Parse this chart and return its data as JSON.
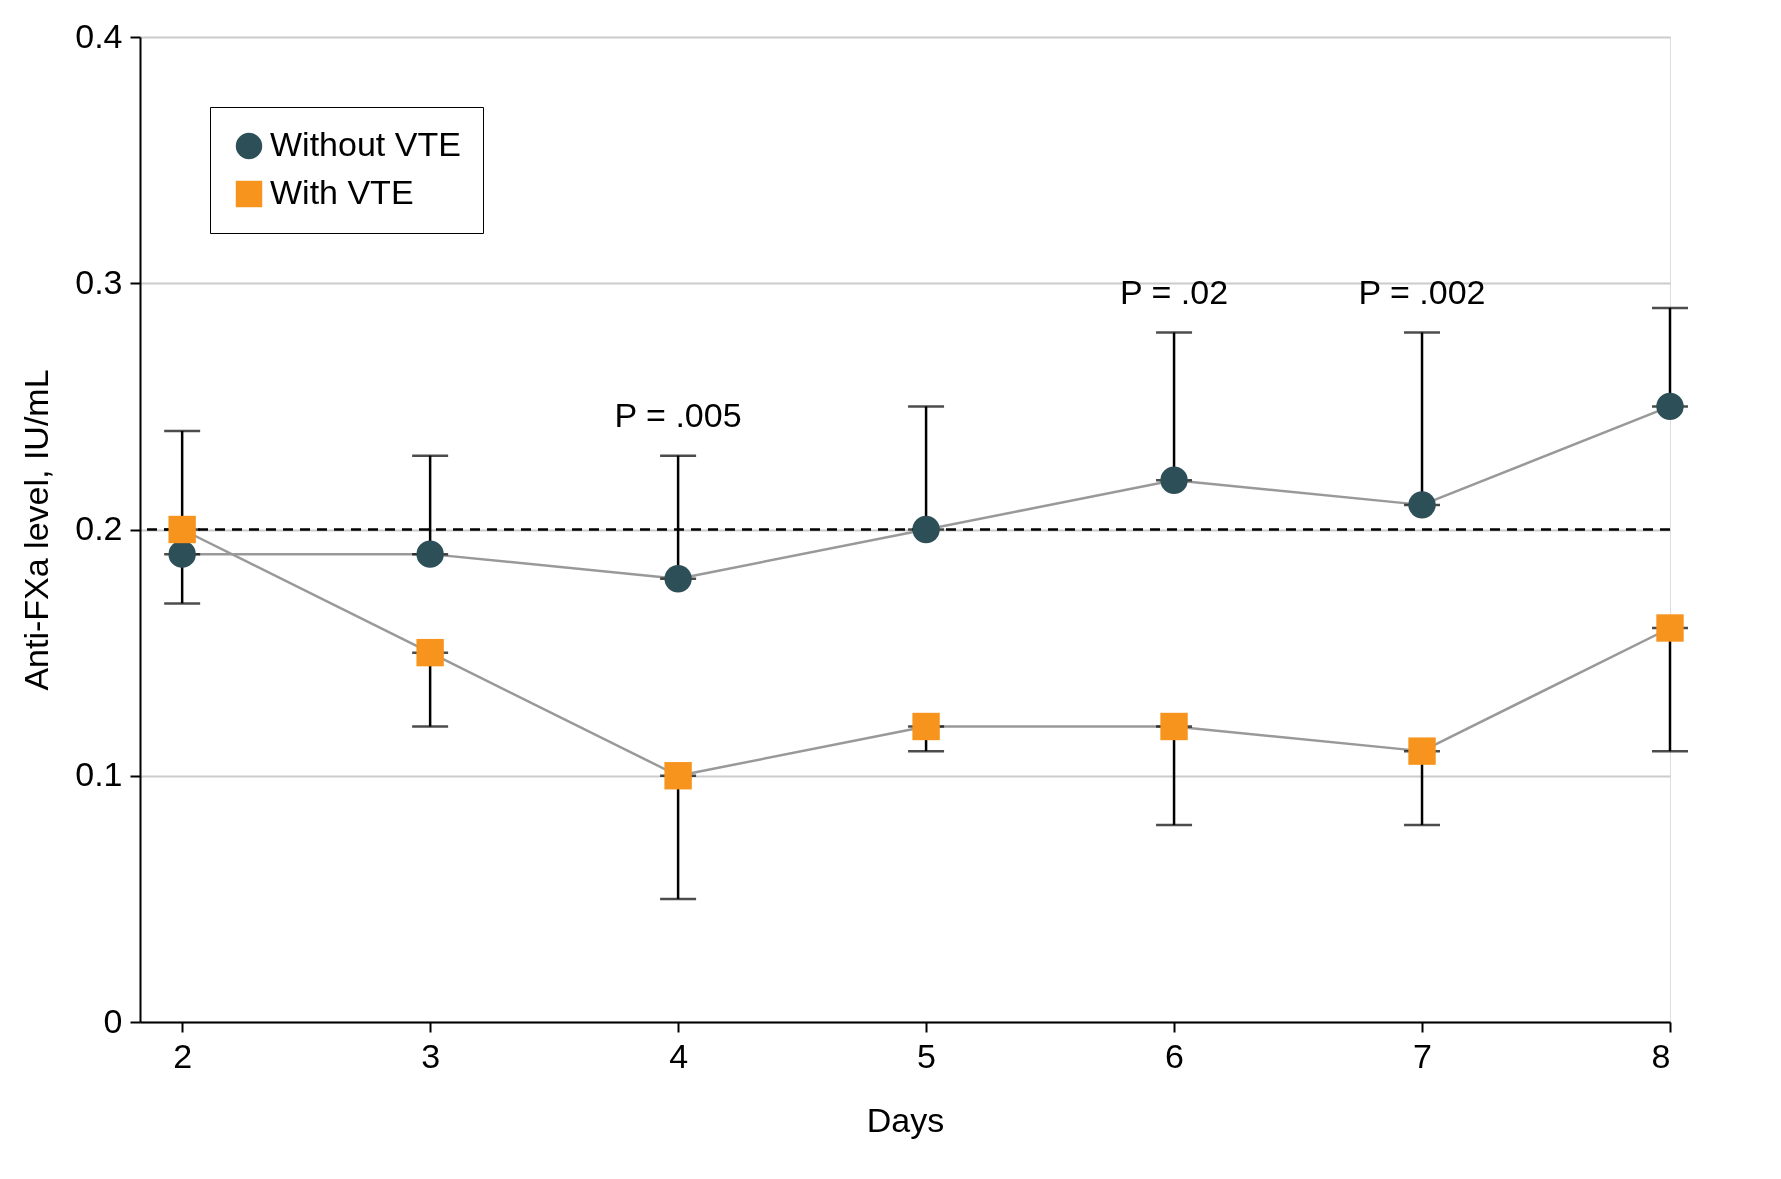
{
  "chart_data": {
    "type": "line",
    "xlabel": "Days",
    "ylabel": "Anti-FXa level, IU/mL",
    "x": [
      2,
      3,
      4,
      5,
      6,
      7,
      8
    ],
    "series": [
      {
        "name": "Without VTE",
        "color": "#2d4f57",
        "marker": "circle",
        "values": [
          0.19,
          0.19,
          0.18,
          0.2,
          0.22,
          0.21,
          0.25
        ],
        "errors": [
          [
            0.19,
            0.24
          ],
          [
            0.19,
            0.23
          ],
          [
            0.18,
            0.23
          ],
          [
            0.2,
            0.25
          ],
          [
            0.22,
            0.28
          ],
          [
            0.21,
            0.28
          ],
          [
            0.25,
            0.29
          ]
        ]
      },
      {
        "name": "With VTE",
        "color": "#f7941d",
        "marker": "square",
        "values": [
          0.2,
          0.15,
          0.1,
          0.12,
          0.12,
          0.11,
          0.16
        ],
        "errors": [
          [
            0.17,
            0.2
          ],
          [
            0.12,
            0.15
          ],
          [
            0.05,
            0.1
          ],
          [
            0.11,
            0.12
          ],
          [
            0.08,
            0.12
          ],
          [
            0.08,
            0.11
          ],
          [
            0.11,
            0.16
          ]
        ]
      }
    ],
    "xlim": [
      1.83,
      8
    ],
    "xticks": [
      2,
      3,
      4,
      5,
      6,
      7,
      8
    ],
    "ylim": [
      0,
      0.4
    ],
    "yticks": [
      0,
      0.1,
      0.2,
      0.3,
      0.4
    ],
    "grid": "y",
    "legend": "top left",
    "ref_lines": [
      {
        "axis": "y",
        "value": 0.2,
        "line_style": "dashed",
        "color": "#000000"
      }
    ],
    "annotations": [
      {
        "text": "P = .005",
        "x": 4,
        "y": 0.23
      },
      {
        "text": "P = .02",
        "x": 6,
        "y": 0.28
      },
      {
        "text": "P = .002",
        "x": 7,
        "y": 0.28
      }
    ]
  }
}
